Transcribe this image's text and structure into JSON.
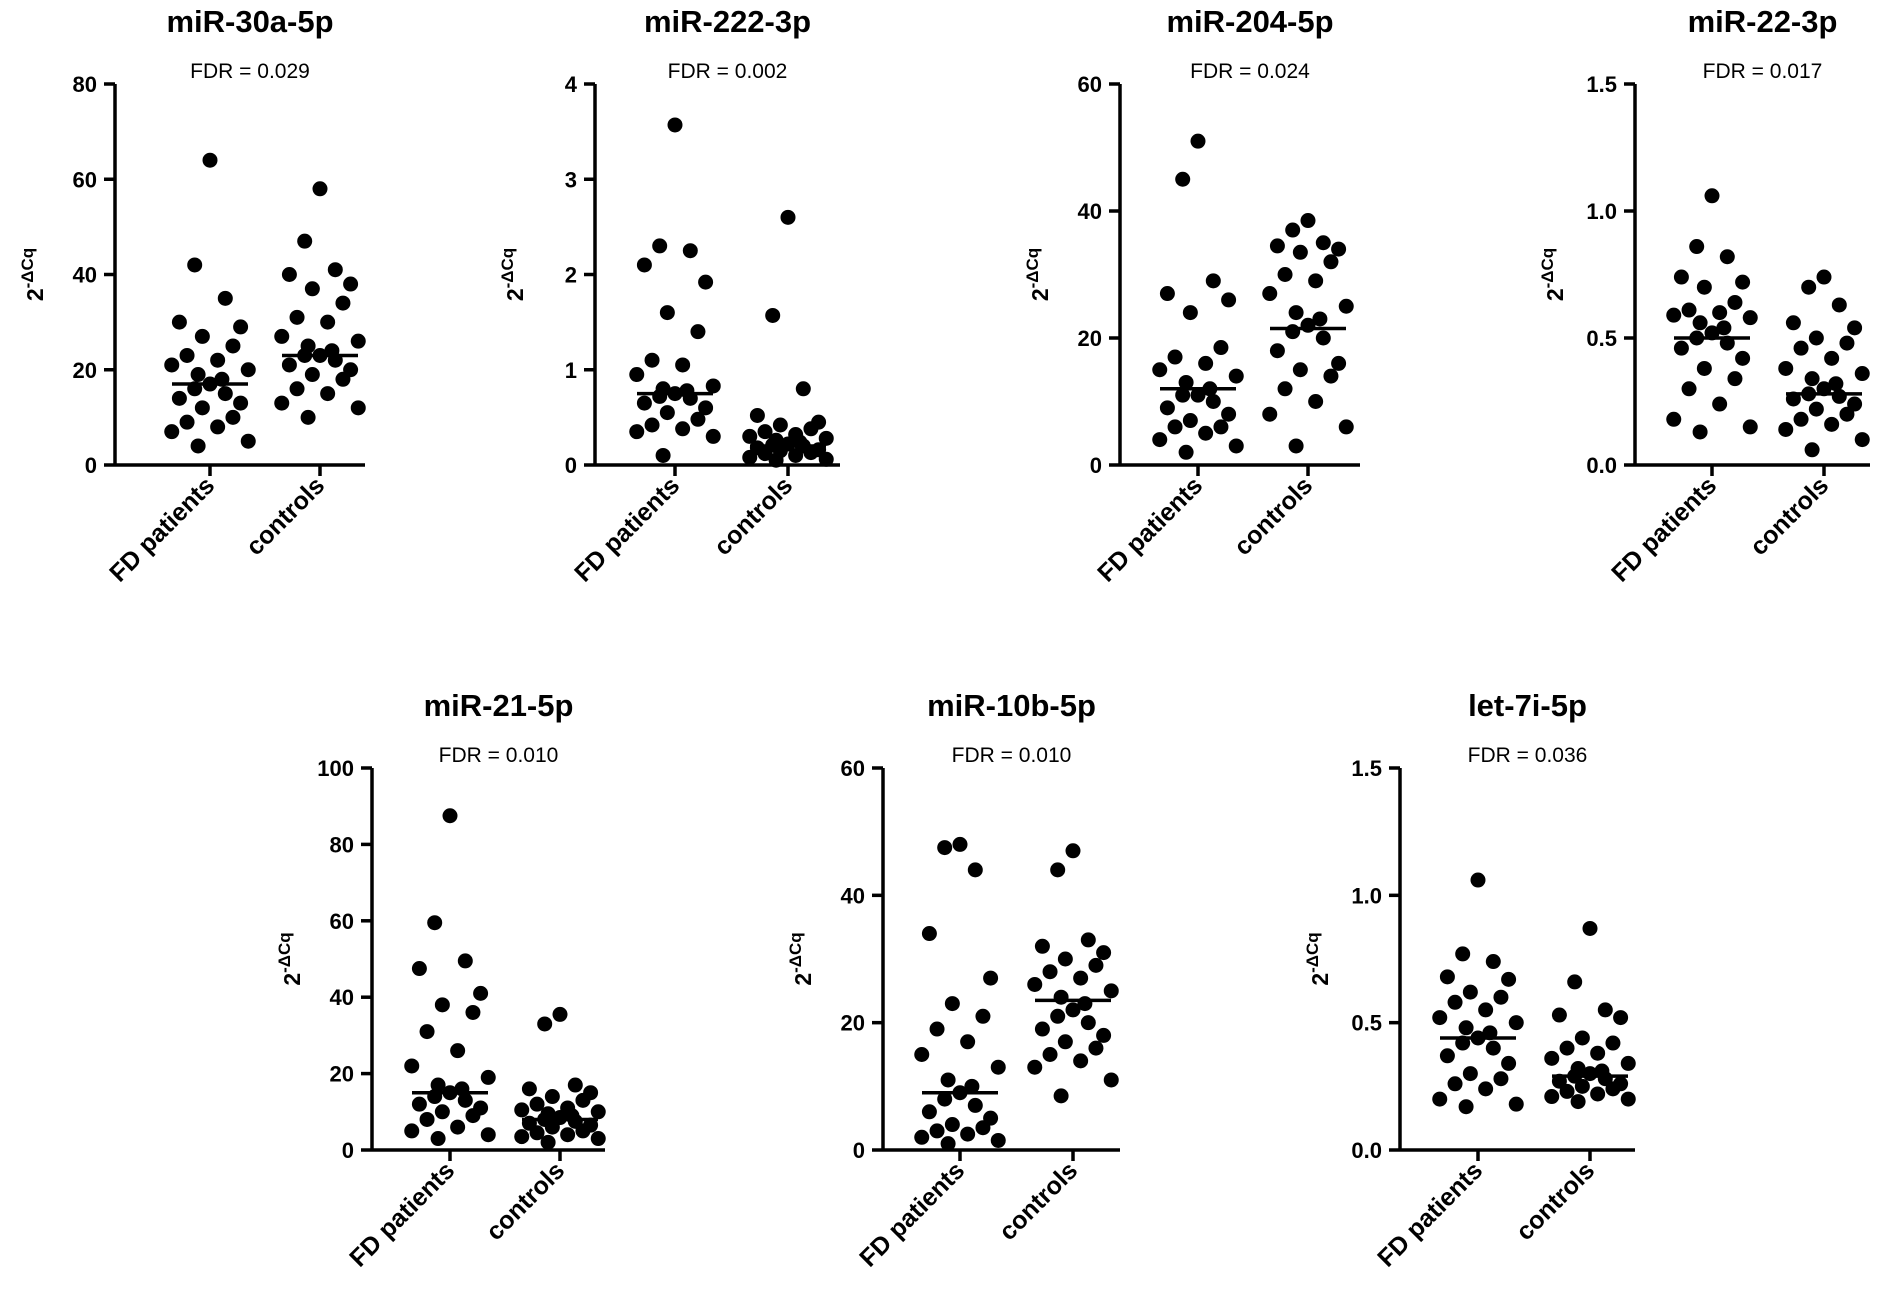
{
  "chart_data": [
    {
      "type": "scatter",
      "title": "miR-30a-5p",
      "annotation": "FDR = 0.029",
      "ylabel": {
        "base": "2",
        "superscript": "-ΔCq"
      },
      "ylim": [
        0,
        80
      ],
      "ticks": [
        0,
        20,
        40,
        60,
        80
      ],
      "tick_labels": [
        "0",
        "20",
        "40",
        "60",
        "80"
      ],
      "categories": [
        "FD patients",
        "controls"
      ],
      "series": [
        {
          "name": "FD patients",
          "median": 17,
          "values": [
            64,
            42,
            35,
            30,
            29,
            27,
            25,
            23,
            22,
            21,
            20,
            19,
            18,
            17,
            16,
            15,
            14,
            13,
            12,
            10,
            9,
            8,
            7,
            5,
            4
          ]
        },
        {
          "name": "controls",
          "median": 23,
          "values": [
            58,
            47,
            41,
            40,
            38,
            37,
            34,
            31,
            30,
            27,
            26,
            25,
            24,
            23,
            23,
            22,
            21,
            20,
            19,
            18,
            16,
            15,
            13,
            12,
            10
          ]
        }
      ]
    },
    {
      "type": "scatter",
      "title": "miR-222-3p",
      "annotation": "FDR = 0.002",
      "ylabel": {
        "base": "2",
        "superscript": "-ΔCq"
      },
      "ylim": [
        0,
        4
      ],
      "ticks": [
        0,
        1,
        2,
        3,
        4
      ],
      "tick_labels": [
        "0",
        "1",
        "2",
        "3",
        "4"
      ],
      "categories": [
        "FD patients",
        "controls"
      ],
      "series": [
        {
          "name": "FD patients",
          "median": 0.75,
          "values": [
            3.57,
            2.3,
            2.25,
            2.1,
            1.92,
            1.6,
            1.4,
            1.1,
            1.05,
            0.95,
            0.83,
            0.8,
            0.78,
            0.75,
            0.72,
            0.7,
            0.65,
            0.6,
            0.55,
            0.48,
            0.42,
            0.38,
            0.35,
            0.3,
            0.1
          ]
        },
        {
          "name": "controls",
          "median": 0.2,
          "values": [
            2.6,
            1.57,
            0.8,
            0.52,
            0.45,
            0.42,
            0.38,
            0.35,
            0.32,
            0.3,
            0.28,
            0.26,
            0.24,
            0.22,
            0.21,
            0.2,
            0.18,
            0.16,
            0.15,
            0.13,
            0.12,
            0.1,
            0.08,
            0.06,
            0.05
          ]
        }
      ]
    },
    {
      "type": "scatter",
      "title": "miR-204-5p",
      "annotation": "FDR = 0.024",
      "ylabel": {
        "base": "2",
        "superscript": "-ΔCq"
      },
      "ylim": [
        0,
        60
      ],
      "ticks": [
        0,
        20,
        40,
        60
      ],
      "tick_labels": [
        "0",
        "20",
        "40",
        "60"
      ],
      "categories": [
        "FD patients",
        "controls"
      ],
      "series": [
        {
          "name": "FD patients",
          "median": 12,
          "values": [
            51,
            45,
            29,
            27,
            26,
            24,
            18.5,
            17,
            16,
            15,
            14,
            13,
            12,
            11,
            11,
            10,
            9,
            8,
            7,
            6,
            6,
            5,
            4,
            3,
            2
          ]
        },
        {
          "name": "controls",
          "median": 21.5,
          "values": [
            38.5,
            37,
            35,
            34.5,
            34,
            33.5,
            32,
            30,
            29,
            27,
            25,
            24,
            23,
            22,
            21,
            20,
            18,
            16,
            15,
            14,
            12,
            10,
            8,
            6,
            3
          ]
        }
      ]
    },
    {
      "type": "scatter",
      "title": "miR-22-3p",
      "annotation": "FDR = 0.017",
      "ylabel": {
        "base": "2",
        "superscript": "-ΔCq"
      },
      "ylim": [
        0,
        1.5
      ],
      "ticks": [
        0,
        0.5,
        1.0,
        1.5
      ],
      "tick_labels": [
        "0.0",
        "0.5",
        "1.0",
        "1.5"
      ],
      "categories": [
        "FD patients",
        "controls"
      ],
      "series": [
        {
          "name": "FD patients",
          "median": 0.5,
          "values": [
            1.06,
            0.86,
            0.82,
            0.74,
            0.72,
            0.7,
            0.64,
            0.61,
            0.6,
            0.59,
            0.58,
            0.56,
            0.54,
            0.52,
            0.5,
            0.48,
            0.46,
            0.42,
            0.38,
            0.34,
            0.3,
            0.24,
            0.18,
            0.15,
            0.13
          ]
        },
        {
          "name": "controls",
          "median": 0.28,
          "values": [
            0.74,
            0.7,
            0.63,
            0.56,
            0.54,
            0.5,
            0.48,
            0.46,
            0.42,
            0.38,
            0.36,
            0.34,
            0.32,
            0.3,
            0.28,
            0.27,
            0.26,
            0.24,
            0.22,
            0.2,
            0.18,
            0.16,
            0.14,
            0.1,
            0.06
          ]
        }
      ]
    },
    {
      "type": "scatter",
      "title": "miR-21-5p",
      "annotation": "FDR = 0.010",
      "ylabel": {
        "base": "2",
        "superscript": "-ΔCq"
      },
      "ylim": [
        0,
        100
      ],
      "ticks": [
        0,
        20,
        40,
        60,
        80,
        100
      ],
      "tick_labels": [
        "0",
        "20",
        "40",
        "60",
        "80",
        "100"
      ],
      "categories": [
        "FD patients",
        "controls"
      ],
      "series": [
        {
          "name": "FD patients",
          "median": 15,
          "values": [
            87.5,
            59.5,
            49.5,
            47.5,
            41,
            38,
            36,
            31,
            26,
            22,
            19,
            17,
            16,
            15,
            14,
            13,
            12,
            11,
            10,
            9,
            8,
            6,
            5,
            4,
            3
          ]
        },
        {
          "name": "controls",
          "median": 8,
          "values": [
            35.5,
            33,
            17,
            16,
            15,
            14,
            13,
            12,
            11,
            10.5,
            10,
            9.5,
            9,
            8.5,
            8,
            7.5,
            7,
            6.5,
            6,
            5,
            4.5,
            4,
            3.5,
            3,
            2
          ]
        }
      ]
    },
    {
      "type": "scatter",
      "title": "miR-10b-5p",
      "annotation": "FDR = 0.010",
      "ylabel": {
        "base": "2",
        "superscript": "-ΔCq"
      },
      "ylim": [
        0,
        60
      ],
      "ticks": [
        0,
        20,
        40,
        60
      ],
      "tick_labels": [
        "0",
        "20",
        "40",
        "60"
      ],
      "categories": [
        "FD patients",
        "controls"
      ],
      "series": [
        {
          "name": "FD patients",
          "median": 9,
          "values": [
            48,
            47.5,
            44,
            34,
            27,
            23,
            21,
            19,
            17,
            15,
            13,
            11,
            10,
            9,
            8,
            7,
            6,
            5,
            4,
            3.5,
            3,
            2.5,
            2,
            1.5,
            1
          ]
        },
        {
          "name": "controls",
          "median": 23.5,
          "values": [
            47,
            44,
            33,
            32,
            31,
            30,
            29,
            28,
            27,
            26,
            25,
            24,
            23,
            22,
            21,
            20,
            19,
            18,
            17,
            16,
            15,
            14,
            13,
            11,
            8.5
          ]
        }
      ]
    },
    {
      "type": "scatter",
      "title": "let-7i-5p",
      "annotation": "FDR = 0.036",
      "ylabel": {
        "base": "2",
        "superscript": "-ΔCq"
      },
      "ylim": [
        0,
        1.5
      ],
      "ticks": [
        0,
        0.5,
        1.0,
        1.5
      ],
      "tick_labels": [
        "0.0",
        "0.5",
        "1.0",
        "1.5"
      ],
      "categories": [
        "FD patients",
        "controls"
      ],
      "series": [
        {
          "name": "FD patients",
          "median": 0.44,
          "values": [
            1.06,
            0.77,
            0.74,
            0.68,
            0.67,
            0.62,
            0.6,
            0.58,
            0.55,
            0.52,
            0.5,
            0.48,
            0.46,
            0.44,
            0.42,
            0.4,
            0.37,
            0.34,
            0.3,
            0.28,
            0.26,
            0.24,
            0.2,
            0.18,
            0.17
          ]
        },
        {
          "name": "controls",
          "median": 0.29,
          "values": [
            0.87,
            0.66,
            0.55,
            0.53,
            0.52,
            0.44,
            0.42,
            0.4,
            0.38,
            0.36,
            0.34,
            0.32,
            0.31,
            0.3,
            0.29,
            0.28,
            0.27,
            0.26,
            0.25,
            0.24,
            0.23,
            0.22,
            0.21,
            0.2,
            0.19
          ]
        }
      ]
    }
  ]
}
